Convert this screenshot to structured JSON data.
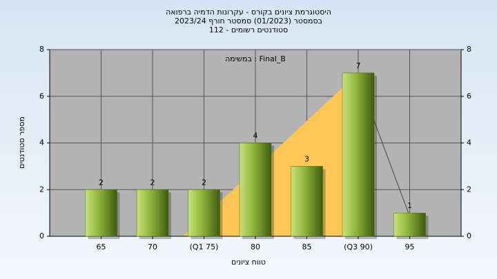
{
  "chart_data": {
    "type": "bar",
    "title": [
      "היסטוגרמת ציונים בקורס - עקרונות הדמיה ברפואה",
      "בסמסטר  (01/2023)  סמסטר חורף 2023/24",
      "סטודנטים רשומים - 112"
    ],
    "annotation": "במשימה : Final_B",
    "x_label": "טווח ציונים",
    "y_label": "מספר סטודנטים",
    "categories": [
      "65",
      "70",
      "(Q1 75)",
      "80",
      "85",
      "(Q3 90)",
      "95"
    ],
    "values": [
      2,
      2,
      2,
      4,
      3,
      7,
      1
    ],
    "ylim": [
      0,
      8
    ],
    "yticks": [
      0,
      2,
      4,
      6,
      8
    ],
    "y2lim": [
      0,
      8
    ],
    "y2ticks": [
      0,
      2,
      4,
      6,
      8
    ],
    "grid": true
  }
}
